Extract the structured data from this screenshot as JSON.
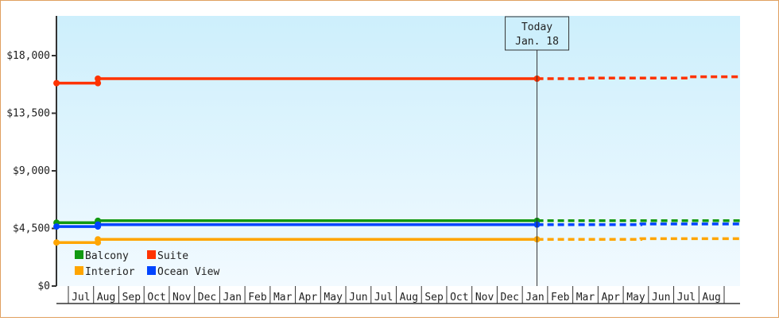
{
  "chart_data": {
    "type": "line",
    "title": "",
    "xlabel": "",
    "ylabel": "",
    "ylim": [
      0,
      21000
    ],
    "y_ticks": [
      0,
      4500,
      9000,
      13500,
      18000
    ],
    "y_tick_labels": [
      "$0",
      "$4,500",
      "$9,000",
      "$13,500",
      "$18,000"
    ],
    "x_ticks": [
      "Jul",
      "Aug",
      "Sep",
      "Oct",
      "Nov",
      "Dec",
      "Jan",
      "Feb",
      "Mar",
      "Apr",
      "May",
      "Jun",
      "Jul",
      "Aug",
      "Sep",
      "Oct",
      "Nov",
      "Dec",
      "Jan",
      "Feb",
      "Mar",
      "Apr",
      "May",
      "Jun",
      "Jul",
      "Aug"
    ],
    "x_units": "position along month tick columns (0 = start of first Jul column)",
    "grid": false,
    "legend": "bottom-left",
    "today_marker": {
      "line1": "Today",
      "line2": "Jan. 18",
      "x": 18.58
    },
    "series": [
      {
        "name": "Balcony",
        "color": "#119911",
        "actual": [
          [
            -0.47,
            4950
          ],
          [
            1.17,
            4950
          ],
          [
            1.17,
            5100
          ],
          [
            18.58,
            5100
          ]
        ],
        "forecast": [
          [
            18.58,
            5100
          ],
          [
            26.65,
            5100
          ]
        ]
      },
      {
        "name": "Suite",
        "color": "#ff3300",
        "actual": [
          [
            -0.47,
            15850
          ],
          [
            1.17,
            15850
          ],
          [
            1.17,
            16200
          ],
          [
            18.58,
            16200
          ]
        ],
        "forecast": [
          [
            18.58,
            16200
          ],
          [
            20.5,
            16200
          ],
          [
            20.5,
            16250
          ],
          [
            24.6,
            16250
          ],
          [
            24.6,
            16350
          ],
          [
            26.65,
            16350
          ]
        ]
      },
      {
        "name": "Interior",
        "color": "#ffa500",
        "actual": [
          [
            -0.47,
            3400
          ],
          [
            1.17,
            3400
          ],
          [
            1.17,
            3650
          ],
          [
            18.58,
            3650
          ]
        ],
        "forecast": [
          [
            18.58,
            3650
          ],
          [
            22.7,
            3650
          ],
          [
            22.7,
            3700
          ],
          [
            26.65,
            3700
          ]
        ]
      },
      {
        "name": "Ocean View",
        "color": "#0044ff",
        "actual": [
          [
            -0.47,
            4650
          ],
          [
            1.17,
            4650
          ],
          [
            1.17,
            4800
          ],
          [
            18.58,
            4800
          ]
        ],
        "forecast": [
          [
            18.58,
            4800
          ],
          [
            22.7,
            4800
          ],
          [
            22.7,
            4850
          ],
          [
            26.65,
            4850
          ]
        ]
      }
    ],
    "background_gradient": [
      "#cdeffc",
      "#f2faff"
    ]
  }
}
